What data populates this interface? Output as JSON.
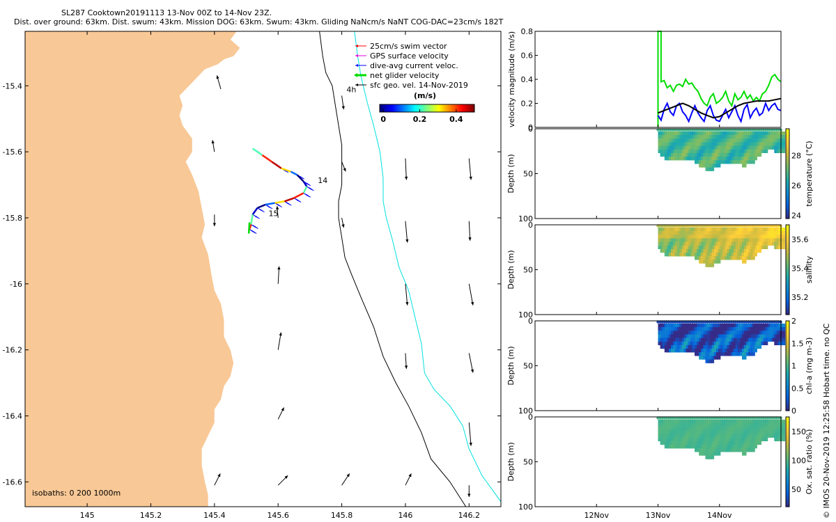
{
  "title_line1": "SL287 Cooktown20191113 13-Nov 00Z to 14-Nov 23Z.",
  "title_line2": "Dist. over ground: 63km. Dist. swum: 43km. Mission DOG: 63km. Swum: 43km. Gliding NaNcm/s NaNT COG-DAC=23cm/s 182T",
  "footer_text": "© IMOS 20-Nov-2019 12:25:58 Hobart time. no QC",
  "colors": {
    "land": "#f8c896",
    "swim": "#ff0000",
    "gps": "#e000e0",
    "dac": "#0000ff",
    "net": "#00dd00",
    "sfc": "#000000",
    "isobath200": "#000000",
    "isobath1000": "#00e0e0"
  },
  "chart_data": [
    {
      "type": "map",
      "id": "track_map",
      "xlabel": "",
      "ylabel": "",
      "xlim": [
        144.805,
        146.3
      ],
      "ylim": [
        -16.675,
        -15.235
      ],
      "xticks": [
        145,
        145.2,
        145.4,
        145.6,
        145.8,
        146,
        146.2
      ],
      "xtick_labels": [
        "145",
        "145.2",
        "145.4",
        "145.6",
        "145.8",
        "146",
        "146.2"
      ],
      "yticks": [
        -15.4,
        -15.6,
        -15.8,
        -16,
        -16.2,
        -16.4,
        -16.6
      ],
      "ytick_labels": [
        "-15.4",
        "-15.6",
        "-15.8",
        "-16",
        "-16.2",
        "-16.4",
        "-16.6"
      ],
      "legend": [
        {
          "label": "25cm/s swim vector",
          "color": "#ff0000"
        },
        {
          "label": "GPS surface velocity",
          "color": "#e000e0"
        },
        {
          "label": "dive-avg current veloc.",
          "color": "#0000ff"
        },
        {
          "label": "net glider velocity",
          "color": "#00dd00"
        },
        {
          "label": "sfc geo. vel. 14-Nov-2019",
          "color": "#000000"
        }
      ],
      "colorbar": {
        "label": "(m/s)",
        "ticks": [
          0,
          0.2,
          0.4
        ],
        "tick_labels": [
          "0",
          "0.2",
          "0.4"
        ],
        "range": [
          -0.02,
          0.5
        ]
      },
      "annotations": [
        {
          "text": "4h",
          "lon": 145.815,
          "lat": -15.42
        },
        {
          "text": "14",
          "lon": 145.725,
          "lat": -15.695
        },
        {
          "text": "15",
          "lon": 145.57,
          "lat": -15.795
        }
      ],
      "isobath_label": "isobaths: 0   200  1000m",
      "isobath_200": [
        [
          145.73,
          -15.235
        ],
        [
          145.74,
          -15.31
        ],
        [
          145.75,
          -15.36
        ],
        [
          145.77,
          -15.4
        ],
        [
          145.78,
          -15.46
        ],
        [
          145.79,
          -15.52
        ],
        [
          145.8,
          -15.58
        ],
        [
          145.8,
          -15.65
        ],
        [
          145.8,
          -15.7
        ],
        [
          145.79,
          -15.75
        ],
        [
          145.79,
          -15.8
        ],
        [
          145.8,
          -15.86
        ],
        [
          145.81,
          -15.92
        ],
        [
          145.83,
          -15.97
        ],
        [
          145.86,
          -16.04
        ],
        [
          145.9,
          -16.13
        ],
        [
          145.93,
          -16.22
        ],
        [
          145.97,
          -16.3
        ],
        [
          146.01,
          -16.37
        ],
        [
          146.05,
          -16.45
        ],
        [
          146.08,
          -16.53
        ],
        [
          146.14,
          -16.6
        ],
        [
          146.19,
          -16.675
        ]
      ],
      "isobath_1000": [
        [
          145.84,
          -15.235
        ],
        [
          145.85,
          -15.31
        ],
        [
          145.86,
          -15.37
        ],
        [
          145.88,
          -15.45
        ],
        [
          145.9,
          -15.52
        ],
        [
          145.92,
          -15.6
        ],
        [
          145.93,
          -15.68
        ],
        [
          145.93,
          -15.75
        ],
        [
          145.94,
          -15.8
        ],
        [
          145.96,
          -15.87
        ],
        [
          145.98,
          -15.95
        ],
        [
          146.01,
          -16.02
        ],
        [
          146.03,
          -16.1
        ],
        [
          146.05,
          -16.18
        ],
        [
          146.06,
          -16.27
        ],
        [
          146.09,
          -16.32
        ],
        [
          146.14,
          -16.37
        ],
        [
          146.18,
          -16.43
        ],
        [
          146.2,
          -16.5
        ],
        [
          146.24,
          -16.58
        ],
        [
          146.3,
          -16.66
        ]
      ],
      "track": [
        [
          145.52,
          -15.59
        ],
        [
          145.55,
          -15.61
        ],
        [
          145.58,
          -15.63
        ],
        [
          145.61,
          -15.65
        ],
        [
          145.64,
          -15.66
        ],
        [
          145.66,
          -15.67
        ],
        [
          145.68,
          -15.69
        ],
        [
          145.69,
          -15.705
        ],
        [
          145.68,
          -15.725
        ],
        [
          145.65,
          -15.74
        ],
        [
          145.62,
          -15.75
        ],
        [
          145.59,
          -15.755
        ],
        [
          145.56,
          -15.76
        ],
        [
          145.535,
          -15.77
        ],
        [
          145.52,
          -15.79
        ],
        [
          145.515,
          -15.82
        ],
        [
          145.51,
          -15.835
        ]
      ],
      "vectors": [
        [
          145.42,
          -15.41,
          -0.2,
          0.7
        ],
        [
          145.8,
          -15.43,
          0.1,
          -0.7
        ],
        [
          145.4,
          -15.6,
          -0.1,
          0.6
        ],
        [
          145.8,
          -15.63,
          0.2,
          -0.5
        ],
        [
          146.0,
          -15.62,
          0.05,
          -1.1
        ],
        [
          146.2,
          -15.62,
          0.1,
          -1.1
        ],
        [
          145.4,
          -15.79,
          0.0,
          -0.6
        ],
        [
          145.6,
          -15.8,
          -0.05,
          0.6
        ],
        [
          145.8,
          -15.8,
          0.1,
          -0.5
        ],
        [
          146.0,
          -15.81,
          0.1,
          -1.1
        ],
        [
          146.2,
          -15.81,
          0.05,
          -1.0
        ],
        [
          145.6,
          -16.0,
          0.05,
          0.9
        ],
        [
          146.0,
          -16.0,
          0.1,
          -1.1
        ],
        [
          146.2,
          -16.0,
          0.2,
          -1.1
        ],
        [
          145.6,
          -16.2,
          0.15,
          0.9
        ],
        [
          146.0,
          -16.21,
          0.05,
          -0.8
        ],
        [
          146.2,
          -16.21,
          0.2,
          -1.0
        ],
        [
          145.6,
          -16.41,
          0.3,
          0.6
        ],
        [
          146.2,
          -16.42,
          0.1,
          -1.2
        ],
        [
          145.4,
          -16.61,
          0.3,
          0.6
        ],
        [
          145.6,
          -16.61,
          0.5,
          0.5
        ],
        [
          145.8,
          -16.61,
          0.4,
          0.6
        ],
        [
          146.0,
          -16.61,
          0.3,
          0.6
        ],
        [
          146.2,
          -16.61,
          0.0,
          -0.6
        ]
      ],
      "coast": [
        [
          144.805,
          -15.235
        ],
        [
          145.47,
          -15.235
        ],
        [
          145.45,
          -15.26
        ],
        [
          145.48,
          -15.285
        ],
        [
          145.46,
          -15.31
        ],
        [
          145.43,
          -15.32
        ],
        [
          145.41,
          -15.335
        ],
        [
          145.37,
          -15.35
        ],
        [
          145.35,
          -15.37
        ],
        [
          145.32,
          -15.4
        ],
        [
          145.29,
          -15.43
        ],
        [
          145.3,
          -15.46
        ],
        [
          145.29,
          -15.49
        ],
        [
          145.3,
          -15.52
        ],
        [
          145.33,
          -15.56
        ],
        [
          145.33,
          -15.6
        ],
        [
          145.31,
          -15.63
        ],
        [
          145.33,
          -15.67
        ],
        [
          145.35,
          -15.72
        ],
        [
          145.36,
          -15.77
        ],
        [
          145.37,
          -15.82
        ],
        [
          145.36,
          -15.86
        ],
        [
          145.38,
          -15.91
        ],
        [
          145.39,
          -15.97
        ],
        [
          145.4,
          -16.02
        ],
        [
          145.42,
          -16.06
        ],
        [
          145.43,
          -16.11
        ],
        [
          145.43,
          -16.16
        ],
        [
          145.45,
          -16.2
        ],
        [
          145.46,
          -16.24
        ],
        [
          145.45,
          -16.28
        ],
        [
          145.43,
          -16.31
        ],
        [
          145.42,
          -16.35
        ],
        [
          145.4,
          -16.38
        ],
        [
          145.4,
          -16.42
        ],
        [
          145.38,
          -16.46
        ],
        [
          145.36,
          -16.5
        ],
        [
          145.36,
          -16.55
        ],
        [
          145.37,
          -16.6
        ],
        [
          145.38,
          -16.64
        ],
        [
          145.38,
          -16.675
        ],
        [
          144.805,
          -16.675
        ]
      ]
    },
    {
      "type": "line",
      "id": "velocity_magnitude",
      "ylabel": "velocity magnitude (m/s)",
      "xlim": [
        11.0,
        15.0
      ],
      "ylim": [
        0,
        0.8
      ],
      "yticks": [
        0,
        0.2,
        0.4,
        0.6,
        0.8
      ],
      "ytick_labels": [
        "0",
        "0.2",
        "0.4",
        "0.6",
        "0.8"
      ],
      "series": [
        {
          "name": "net glider velocity",
          "color": "#00dd00",
          "x": [
            13.0,
            13.0,
            13.05,
            13.05,
            13.1,
            13.15,
            13.2,
            13.25,
            13.3,
            13.35,
            13.4,
            13.45,
            13.5,
            13.55,
            13.6,
            13.65,
            13.7,
            13.75,
            13.8,
            13.85,
            13.9,
            13.95,
            14.0,
            14.05,
            14.1,
            14.15,
            14.2,
            14.25,
            14.3,
            14.35,
            14.4,
            14.45,
            14.5,
            14.55,
            14.6,
            14.65,
            14.7,
            14.75,
            14.8,
            14.85,
            14.9,
            14.95,
            15.0
          ],
          "values": [
            0.0,
            0.8,
            0.8,
            0.38,
            0.39,
            0.33,
            0.35,
            0.3,
            0.35,
            0.36,
            0.34,
            0.4,
            0.36,
            0.37,
            0.33,
            0.3,
            0.24,
            0.2,
            0.18,
            0.25,
            0.28,
            0.2,
            0.22,
            0.25,
            0.3,
            0.22,
            0.18,
            0.28,
            0.23,
            0.25,
            0.3,
            0.24,
            0.27,
            0.22,
            0.25,
            0.22,
            0.28,
            0.3,
            0.35,
            0.42,
            0.44,
            0.4,
            0.38
          ]
        },
        {
          "name": "dive-avg current veloc.",
          "color": "#0000ff",
          "x": [
            13.0,
            13.05,
            13.1,
            13.15,
            13.2,
            13.25,
            13.3,
            13.35,
            13.4,
            13.45,
            13.5,
            13.55,
            13.6,
            13.65,
            13.7,
            13.75,
            13.8,
            13.85,
            13.9,
            13.95,
            14.0,
            14.05,
            14.1,
            14.15,
            14.2,
            14.25,
            14.3,
            14.35,
            14.4,
            14.45,
            14.5,
            14.55,
            14.6,
            14.65,
            14.7,
            14.75,
            14.8,
            14.85,
            14.9,
            14.95,
            15.0
          ],
          "values": [
            0.1,
            0.06,
            0.15,
            0.2,
            0.13,
            0.1,
            0.18,
            0.2,
            0.13,
            0.1,
            0.05,
            0.12,
            0.18,
            0.12,
            0.08,
            0.05,
            0.14,
            0.18,
            0.1,
            0.06,
            0.05,
            0.1,
            0.15,
            0.08,
            0.13,
            0.18,
            0.1,
            0.05,
            0.15,
            0.19,
            0.08,
            0.13,
            0.16,
            0.1,
            0.12,
            0.2,
            0.14,
            0.18,
            0.2,
            0.15,
            0.14
          ]
        },
        {
          "name": "sfc geo. vel.",
          "color": "#000000",
          "x": [
            13.0,
            13.1,
            13.2,
            13.3,
            13.4,
            13.5,
            13.6,
            13.7,
            13.8,
            13.9,
            14.0,
            14.1,
            14.2,
            14.3,
            14.4,
            14.5,
            14.6,
            14.7,
            14.8,
            14.9,
            15.0
          ],
          "values": [
            0.12,
            0.14,
            0.16,
            0.18,
            0.2,
            0.18,
            0.15,
            0.12,
            0.1,
            0.08,
            0.09,
            0.12,
            0.15,
            0.18,
            0.2,
            0.21,
            0.22,
            0.22,
            0.22,
            0.23,
            0.24
          ]
        }
      ]
    },
    {
      "type": "heatmap",
      "id": "temperature",
      "ylabel": "Depth (m)",
      "clabel": "temperature (°C)",
      "ylim": [
        100,
        0
      ],
      "yticks": [
        0,
        50,
        100
      ],
      "clim": [
        23.8,
        29.8
      ],
      "cticks": [
        24,
        26,
        28
      ],
      "ctick_labels": [
        "24",
        "26",
        "28"
      ],
      "colormap": "parula",
      "typical": 26.8,
      "spread": 0.6,
      "trend": 0.0,
      "noise": 0.3,
      "surface_offset": 0
    },
    {
      "type": "heatmap",
      "id": "salinity",
      "ylabel": "Depth (m)",
      "clabel": "salinity",
      "ylim": [
        100,
        0
      ],
      "yticks": [
        0,
        50,
        100
      ],
      "clim": [
        35.08,
        35.7
      ],
      "cticks": [
        35.2,
        35.4,
        35.6
      ],
      "ctick_labels": [
        "35.2",
        "35.4",
        "35.6"
      ],
      "colormap": "parula",
      "typical": 35.45,
      "spread": 0.04,
      "trend": 0.12,
      "noise": 0.06,
      "surface_offset": 0.05
    },
    {
      "type": "heatmap",
      "id": "chla",
      "ylabel": "Depth (m)",
      "clabel": "chl-a (mg m-3)",
      "ylim": [
        100,
        0
      ],
      "yticks": [
        0,
        50,
        100
      ],
      "clim": [
        0,
        2
      ],
      "cticks": [
        0,
        0.5,
        1,
        1.5,
        2
      ],
      "ctick_labels": [
        "0",
        "0.5",
        "1",
        "1.5",
        "2"
      ],
      "colormap": "parula",
      "typical": 0.25,
      "spread": 0.35,
      "trend": 0.0,
      "noise": 0.25,
      "surface_offset": -0.1
    },
    {
      "type": "heatmap",
      "id": "oxsat",
      "ylabel": "Depth (m)",
      "clabel": "Ox. sat. ratio (%)",
      "ylim": [
        100,
        0
      ],
      "yticks": [
        0,
        50,
        100
      ],
      "clim": [
        20,
        175
      ],
      "cticks": [
        50,
        100,
        150
      ],
      "ctick_labels": [
        "50",
        "100",
        "150"
      ],
      "colormap": "parula",
      "typical": 98,
      "spread": 3,
      "trend": 0.0,
      "noise": 3,
      "surface_offset": 0
    },
    {
      "type": "axis",
      "id": "time_axis",
      "xlim": [
        11.0,
        15.0
      ],
      "xticks": [
        12,
        13,
        14
      ],
      "xtick_labels": [
        "12Nov",
        "13Nov",
        "14Nov"
      ]
    }
  ]
}
